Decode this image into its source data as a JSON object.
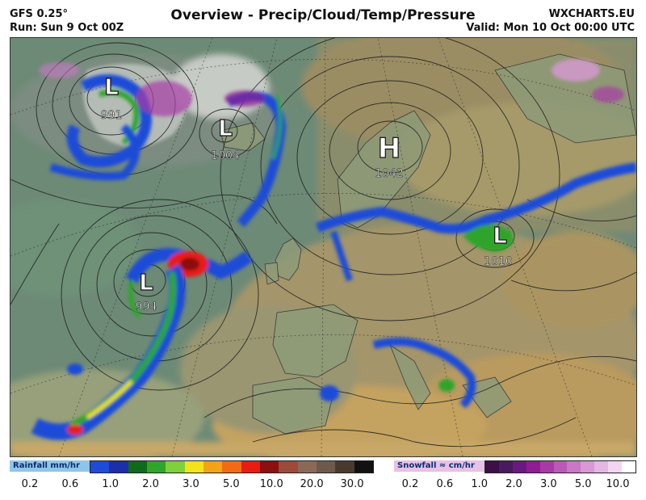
{
  "header": {
    "model": "GFS 0.25°",
    "run": "Run: Sun 9 Oct 00Z",
    "title": "Overview - Precip/Cloud/Temp/Pressure",
    "site": "WXCHARTS.EU",
    "valid": "Valid: Mon 10 Oct 00:00 UTC"
  },
  "pressure_centers": [
    {
      "type": "L",
      "value": "991"
    },
    {
      "type": "L",
      "value": "1004"
    },
    {
      "type": "H",
      "value": "1042"
    },
    {
      "type": "L",
      "value": "1010"
    },
    {
      "type": "L",
      "value": "994"
    }
  ],
  "rainfall_legend": {
    "label": "Rainfall mm/hr",
    "colors": [
      "#1e4bd8",
      "#1c2fa8",
      "#0f6a1c",
      "#2fa52c",
      "#7ed13a",
      "#f2e41a",
      "#f3a318",
      "#f26b14",
      "#e81c12",
      "#8b1010",
      "#9c4a3a",
      "#8a6a56",
      "#6e5a4a",
      "#4a3a2e",
      "#111111"
    ],
    "ticks": [
      "0.2",
      "0.6",
      "1.0",
      "2.0",
      "3.0",
      "5.0",
      "10.0",
      "20.0",
      "30.0"
    ]
  },
  "snowfall_legend": {
    "label": "Snowfall ≈ cm/hr",
    "colors": [
      "#3a1046",
      "#4a1a5e",
      "#6a1a7e",
      "#8e1e92",
      "#a83aa6",
      "#bb5ab6",
      "#c878c4",
      "#d898d4",
      "#e4b6e2",
      "#f2d6f0",
      "#ffffff"
    ],
    "ticks": [
      "0.2",
      "0.6",
      "1.0",
      "2.0",
      "3.0",
      "5.0",
      "10.0"
    ]
  }
}
